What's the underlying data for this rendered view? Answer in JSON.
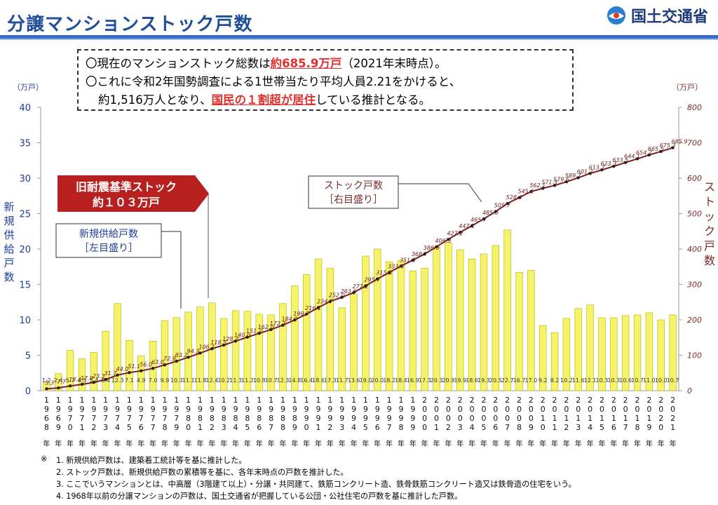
{
  "header": {
    "title": "分譲マンションストック戸数",
    "logo_text": "国土交通省",
    "logo_icon": "mlit-logo-icon"
  },
  "callout": {
    "line1_pre": "〇現在のマンションストック総数は",
    "line1_red": "約685.9万戸",
    "line1_post": "（2021年末時点）。",
    "line2": "〇これに令和2年国勢調査による1世帯当たり平均人員2.21をかけると、",
    "line3_pre": "約1,516万人となり、",
    "line3_red": "国民の１割超が居住",
    "line3_post": "している推計となる。"
  },
  "annotations": {
    "old_standard": "旧耐震基準ストック\n約１０３万戸",
    "new_supply": "新規供給戸数\n［左目盛り］",
    "stock": "ストック戸数\n［右目盛り］"
  },
  "chart_data": {
    "type": "bar",
    "title": "",
    "left_axis_unit": "（万戸）",
    "right_axis_unit": "（万戸）",
    "left_axis_label": "新規供給戸数",
    "right_axis_label": "ストック戸数",
    "left_ylim": [
      0,
      40
    ],
    "right_ylim": [
      0,
      800
    ],
    "left_ticks": [
      0,
      5,
      10,
      15,
      20,
      25,
      30,
      35,
      40
    ],
    "right_ticks": [
      0,
      100,
      200,
      300,
      400,
      500,
      600,
      700,
      800
    ],
    "x_label_suffix": "年",
    "categories": [
      "1968",
      "1969",
      "1970",
      "1971",
      "1972",
      "1973",
      "1974",
      "1975",
      "1976",
      "1977",
      "1978",
      "1979",
      "1980",
      "1981",
      "1982",
      "1983",
      "1984",
      "1985",
      "1986",
      "1987",
      "1988",
      "1989",
      "1990",
      "1991",
      "1992",
      "1993",
      "1994",
      "1995",
      "1996",
      "1997",
      "1998",
      "1999",
      "2000",
      "2001",
      "2002",
      "2003",
      "2004",
      "2005",
      "2006",
      "2007",
      "2008",
      "2009",
      "2010",
      "2011",
      "2012",
      "2013",
      "2014",
      "2015",
      "2016",
      "2017",
      "2018",
      "2019",
      "2020",
      "2021"
    ],
    "series": [
      {
        "name": "新規供給戸数",
        "axis": "left",
        "color": "#f4f36a",
        "edge_color": "#b8b400",
        "values": [
          1.2,
          2.4,
          5.7,
          4.5,
          5.4,
          8.4,
          12.3,
          7.1,
          4.9,
          7.0,
          9.9,
          10.3,
          11.1,
          11.8,
          12.4,
          10.2,
          11.3,
          11.2,
          10.8,
          10.7,
          12.3,
          14.8,
          16.4,
          18.6,
          17.3,
          11.7,
          13.6,
          19.0,
          20.0,
          18.2,
          18.4,
          16.9,
          17.3,
          20.3,
          20.9,
          19.9,
          18.6,
          19.3,
          20.5,
          22.7,
          16.7,
          17.0,
          9.2,
          8.2,
          10.2,
          11.6,
          12.1,
          10.3,
          10.3,
          10.6,
          10.7,
          11.0,
          10.0,
          10.7
        ],
        "labels": [
          "1.2",
          "2.4",
          "5.7",
          "4.5",
          "5.4",
          "8.4",
          "12.3",
          "7.1",
          "4.9",
          "7.0",
          "9.9",
          "10.3",
          "11.1",
          "11.8",
          "12.4",
          "10.2",
          "11.3",
          "11.2",
          "10.8",
          "10.7",
          "12.3",
          "14.8",
          "16.4",
          "18.6",
          "17.3",
          "11.7",
          "13.6",
          "19.0",
          "20.0",
          "18.2",
          "18.4",
          "16.9",
          "17.3",
          "20.3",
          "20.9",
          "19.9",
          "18.6",
          "19.3",
          "20.5",
          "22.7",
          "16.7",
          "17.0",
          "9.2",
          "8.2",
          "10.2",
          "11.6",
          "12.1",
          "10.3",
          "10.3",
          "10.6",
          "10.7",
          "11.0",
          "10.0",
          "10.7"
        ]
      },
      {
        "name": "ストック戸数",
        "axis": "right",
        "color": "#7a1f1f",
        "values": [
          5.3,
          7.7,
          13.4,
          17.9,
          23.3,
          31.7,
          44.0,
          51.1,
          56.0,
          63.0,
          72.9,
          83.2,
          94.3,
          106.1,
          118.5,
          128.7,
          140.0,
          151.2,
          162.0,
          172.7,
          184.9,
          199.7,
          216.1,
          234.7,
          252.0,
          263.6,
          277.2,
          295.7,
          315.5,
          333.6,
          351.9,
          368.7,
          386.0,
          406.3,
          427.2,
          447.1,
          465.7,
          485.0,
          505.7,
          528.4,
          545.1,
          562.1,
          571.3,
          579.6,
          589.7,
          601.2,
          613.2,
          623.3,
          633.5,
          644.1,
          654.7,
          665.5,
          675.3,
          685.9
        ],
        "labels": [
          "5.3",
          "7.7",
          "13.4",
          "17.9",
          "23.3",
          "31.7",
          "44.0",
          "51.1",
          "56.0",
          "63.0",
          "72.9",
          "83.2",
          "94.3",
          "106.1",
          "118.5",
          "128.7",
          "140.0",
          "151.2",
          "162.0",
          "172.7",
          "184.9",
          "199.7",
          "216.1",
          "234.7",
          "252.0",
          "263.6",
          "277.2",
          "295.7",
          "315.5",
          "333.6",
          "351.9",
          "368.7",
          "386.0",
          "406.3",
          "427.2",
          "447.1",
          "465.7",
          "485.0",
          "505.7",
          "528.4",
          "545.1",
          "562.1",
          "571.3",
          "579.6",
          "589.7",
          "601.2",
          "613.2",
          "623.3",
          "633.5",
          "644.1",
          "654.7",
          "665.5",
          "675.3",
          "685.9"
        ]
      }
    ],
    "grid": false,
    "legend": "none"
  },
  "footnotes": {
    "mark": "※",
    "n1": "1. 新規供給戸数は、建築着工統計等を基に推計した。",
    "n2": "2. ストック戸数は、新規供給戸数の累積等を基に、各年末時点の戸数を推計した。",
    "n3": "3. ここでいうマンションとは、中高層（3階建て以上）・分譲・共同建て、鉄筋コンクリート造、鉄骨鉄筋コンクリート造又は鉄骨造の住宅をいう。",
    "n4": "4. 1968年以前の分譲マンションの戸数は、国土交通省が把握している公団・公社住宅の戸数を基に推計した戸数。"
  }
}
